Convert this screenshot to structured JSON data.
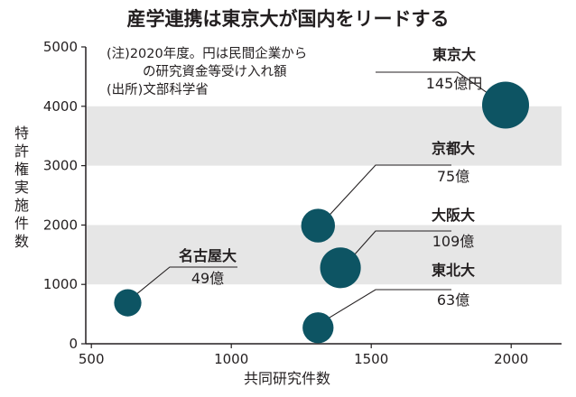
{
  "chart_data": {
    "type": "scatter",
    "title": "産学連携は東京大が国内をリードする",
    "notes": [
      "(注)2020年度。円は民間企業から",
      "の研究資金等受け入れ額",
      "(出所)文部科学省"
    ],
    "xlabel": "共同研究件数",
    "ylabel": "特許権実施件数",
    "xlim": [
      480,
      2180
    ],
    "ylim": [
      0,
      5000
    ],
    "x_ticks": [
      "500",
      "1000",
      "1500",
      "2000"
    ],
    "y_ticks": [
      "0",
      "1000",
      "2000",
      "3000",
      "4000",
      "5000"
    ],
    "grid": "alternating horizontal bands",
    "bubble_color": "#0d5463",
    "band_color": "#e6e6e6",
    "points": [
      {
        "name": "東京大",
        "amount": "145億円",
        "x": 1980,
        "y": 4020,
        "size": 145
      },
      {
        "name": "京都大",
        "amount": "75億",
        "x": 1310,
        "y": 1990,
        "size": 75
      },
      {
        "name": "大阪大",
        "amount": "109億",
        "x": 1390,
        "y": 1280,
        "size": 109
      },
      {
        "name": "名古屋大",
        "amount": "49億",
        "x": 630,
        "y": 690,
        "size": 49
      },
      {
        "name": "東北大",
        "amount": "63億",
        "x": 1310,
        "y": 270,
        "size": 63
      }
    ]
  }
}
